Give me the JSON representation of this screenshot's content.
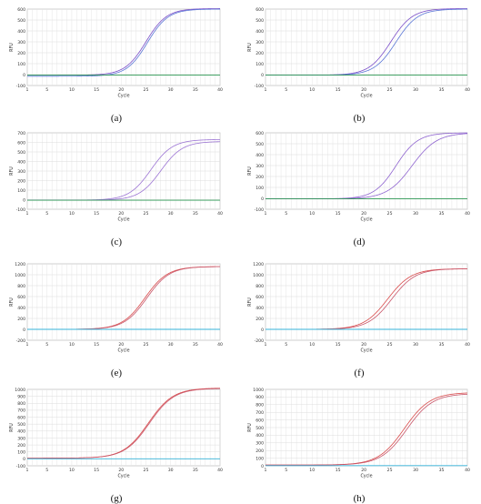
{
  "chart_data": [
    {
      "type": "line",
      "panel_label": "(a)",
      "xlabel": "Cycle",
      "ylabel": "RFU",
      "xlim": [
        1,
        40
      ],
      "ylim": [
        -100,
        600
      ],
      "xticks": [
        1,
        5,
        10,
        15,
        20,
        25,
        30,
        35,
        40
      ],
      "yticks": [
        -100,
        0,
        100,
        200,
        300,
        400,
        500,
        600
      ],
      "series": [
        {
          "color": "#7b4fc9",
          "curve": {
            "baseline": -5,
            "plateau": 605,
            "midpoint": 25.0,
            "slope": 2.1
          }
        },
        {
          "color": "#5b77d6",
          "curve": {
            "baseline": -15,
            "plateau": 600,
            "midpoint": 25.3,
            "slope": 2.1
          }
        },
        {
          "color": "#2e9a55",
          "values_note": "flat",
          "flat": -5
        }
      ]
    },
    {
      "type": "line",
      "panel_label": "(b)",
      "xlabel": "Cycle",
      "ylabel": "RFU",
      "xlim": [
        1,
        40
      ],
      "ylim": [
        -100,
        600
      ],
      "xticks": [
        1,
        5,
        10,
        15,
        20,
        25,
        30,
        35,
        40
      ],
      "yticks": [
        -100,
        0,
        100,
        200,
        300,
        400,
        500,
        600
      ],
      "series": [
        {
          "color": "#7b4fc9",
          "curve": {
            "baseline": -5,
            "plateau": 605,
            "midpoint": 25.2,
            "slope": 2.1
          }
        },
        {
          "color": "#5b77d6",
          "curve": {
            "baseline": -5,
            "plateau": 600,
            "midpoint": 26.2,
            "slope": 2.1
          }
        },
        {
          "color": "#2e9a55",
          "flat": -5
        }
      ]
    },
    {
      "type": "line",
      "panel_label": "(c)",
      "xlabel": "Cycle",
      "ylabel": "RFU",
      "xlim": [
        1,
        40
      ],
      "ylim": [
        -100,
        700
      ],
      "xticks": [
        1,
        5,
        10,
        15,
        20,
        25,
        30,
        35,
        40
      ],
      "yticks": [
        -100,
        0,
        100,
        200,
        300,
        400,
        500,
        600,
        700
      ],
      "series": [
        {
          "color": "#9c74d4",
          "curve": {
            "baseline": -5,
            "plateau": 630,
            "midpoint": 26.0,
            "slope": 2.2
          }
        },
        {
          "color": "#9c74d4",
          "curve": {
            "baseline": -5,
            "plateau": 610,
            "midpoint": 28.0,
            "slope": 2.2
          }
        },
        {
          "color": "#2e9a55",
          "flat": -5
        }
      ]
    },
    {
      "type": "line",
      "panel_label": "(d)",
      "xlabel": "Cycle",
      "ylabel": "RFU",
      "xlim": [
        1,
        40
      ],
      "ylim": [
        -100,
        600
      ],
      "xticks": [
        1,
        5,
        10,
        15,
        20,
        25,
        30,
        35,
        40
      ],
      "yticks": [
        -100,
        0,
        100,
        200,
        300,
        400,
        500,
        600
      ],
      "series": [
        {
          "color": "#8e63cf",
          "curve": {
            "baseline": -5,
            "plateau": 600,
            "midpoint": 26.2,
            "slope": 2.1
          }
        },
        {
          "color": "#8e63cf",
          "curve": {
            "baseline": -5,
            "plateau": 600,
            "midpoint": 29.3,
            "slope": 2.4
          }
        },
        {
          "color": "#2e9a55",
          "flat": -5
        }
      ]
    },
    {
      "type": "line",
      "panel_label": "(e)",
      "xlabel": "Cycle",
      "ylabel": "RFU",
      "xlim": [
        1,
        40
      ],
      "ylim": [
        -200,
        1200
      ],
      "xticks": [
        1,
        5,
        10,
        15,
        20,
        25,
        30,
        35,
        40
      ],
      "yticks": [
        -200,
        0,
        200,
        400,
        600,
        800,
        1000,
        1200
      ],
      "series": [
        {
          "color": "#d94c4c",
          "curve": {
            "baseline": 0,
            "plateau": 1150,
            "midpoint": 24.8,
            "slope": 2.3
          }
        },
        {
          "color": "#c9566a",
          "curve": {
            "baseline": 0,
            "plateau": 1150,
            "midpoint": 25.2,
            "slope": 2.3
          }
        },
        {
          "color": "#35b3d9",
          "flat": 0
        }
      ]
    },
    {
      "type": "line",
      "panel_label": "(f)",
      "xlabel": "Cycle",
      "ylabel": "RFU",
      "xlim": [
        1,
        40
      ],
      "ylim": [
        -200,
        1200
      ],
      "xticks": [
        1,
        5,
        10,
        15,
        20,
        25,
        30,
        35,
        40
      ],
      "yticks": [
        -200,
        0,
        200,
        400,
        600,
        800,
        1000,
        1200
      ],
      "series": [
        {
          "color": "#d94c4c",
          "curve": {
            "baseline": 0,
            "plateau": 1110,
            "midpoint": 24.6,
            "slope": 2.3
          }
        },
        {
          "color": "#c9566a",
          "curve": {
            "baseline": 0,
            "plateau": 1110,
            "midpoint": 25.4,
            "slope": 2.3
          }
        },
        {
          "color": "#35b3d9",
          "flat": 0
        }
      ]
    },
    {
      "type": "line",
      "panel_label": "(g)",
      "xlabel": "Cycle",
      "ylabel": "RFU",
      "xlim": [
        1,
        40
      ],
      "ylim": [
        -100,
        1000
      ],
      "xticks": [
        1,
        5,
        10,
        15,
        20,
        25,
        30,
        35,
        40
      ],
      "yticks": [
        -100,
        0,
        100,
        200,
        300,
        400,
        500,
        600,
        700,
        800,
        900,
        1000
      ],
      "series": [
        {
          "color": "#d94c4c",
          "curve": {
            "baseline": 10,
            "plateau": 1020,
            "midpoint": 25.5,
            "slope": 2.5
          }
        },
        {
          "color": "#c9566a",
          "curve": {
            "baseline": 10,
            "plateau": 1015,
            "midpoint": 25.7,
            "slope": 2.5
          }
        },
        {
          "color": "#35b3d9",
          "flat": 0
        }
      ]
    },
    {
      "type": "line",
      "panel_label": "(h)",
      "xlabel": "Cycle",
      "ylabel": "RFU",
      "xlim": [
        1,
        40
      ],
      "ylim": [
        0,
        1000
      ],
      "xticks": [
        1,
        5,
        10,
        15,
        20,
        25,
        30,
        35,
        40
      ],
      "yticks": [
        0,
        100,
        200,
        300,
        400,
        500,
        600,
        700,
        800,
        900,
        1000
      ],
      "series": [
        {
          "color": "#d94c4c",
          "curve": {
            "baseline": 10,
            "plateau": 960,
            "midpoint": 27.8,
            "slope": 2.5
          }
        },
        {
          "color": "#c9566a",
          "curve": {
            "baseline": 10,
            "plateau": 945,
            "midpoint": 28.3,
            "slope": 2.5
          }
        },
        {
          "color": "#35b3d9",
          "flat": 2
        }
      ]
    }
  ]
}
